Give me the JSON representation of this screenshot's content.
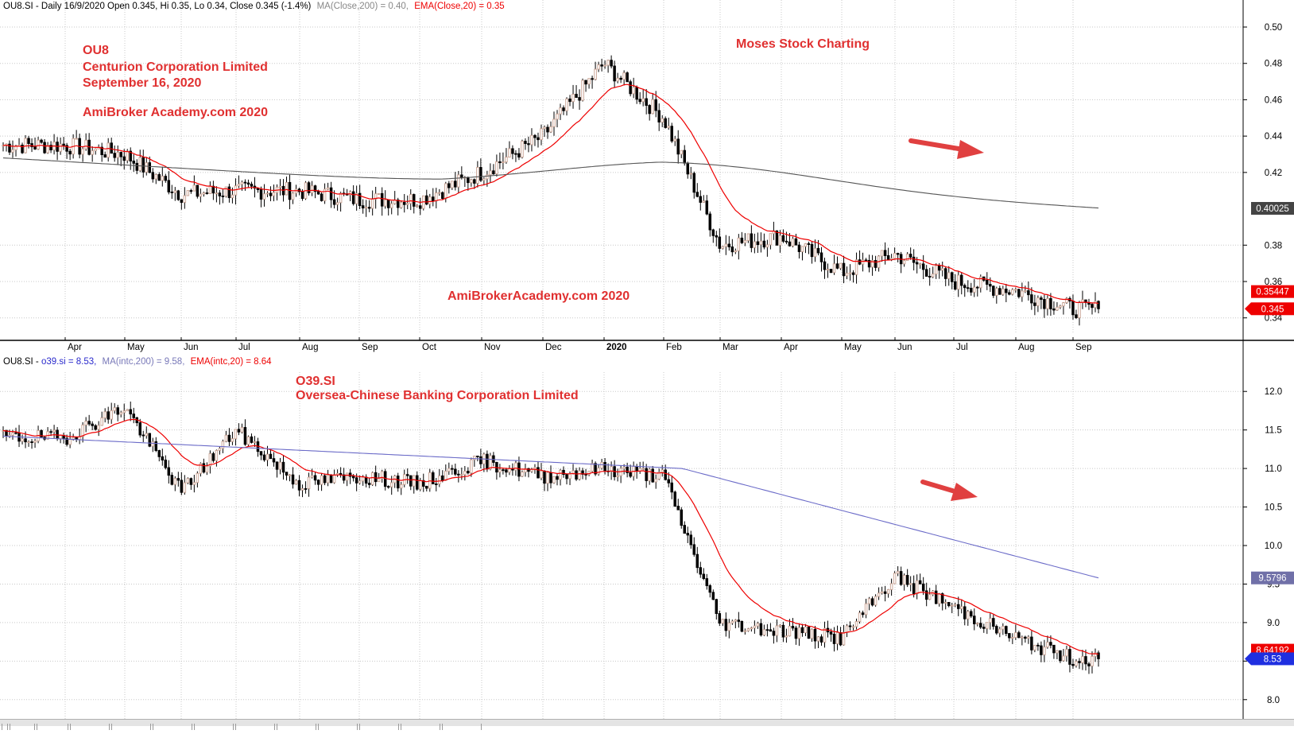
{
  "colors": {
    "background": "#ffffff",
    "grid": "#c8c8c8",
    "up_candle": "#c8a090",
    "down_candle": "#000000",
    "ema": "#ee0000",
    "ma_top": "#555555",
    "ma_bottom": "#6b6bc8",
    "annotation": "#e03030",
    "arrow": "#e04040",
    "price_tag_red": "#ee0000",
    "price_tag_gray": "#444444",
    "price_tag_blue": "#1f2fe0",
    "price_tag_purple": "#7070a8"
  },
  "top_pane": {
    "header": {
      "ticker_line": "OU8.SI - Daily 16/9/2020 Open 0.345, Hi 0.35, Lo 0.34, Close 0.345 (-1.4%)",
      "ma_label": "MA(Close,200) = 0.40,",
      "ema_label": "EMA(Close,20) = 0.35"
    },
    "annotations": {
      "ticker": "OU8",
      "company": "Centurion Corporation Limited",
      "date": "September 16, 2020",
      "site_left": "AmiBroker Academy.com  2020",
      "brand": "Moses Stock Charting",
      "site_center": "AmiBrokerAcademy.com 2020"
    },
    "price_tags": {
      "ma": "0.40025",
      "ema": "0.35447",
      "close": "0.345"
    },
    "x_labels": [
      {
        "label": "Apr",
        "bold": false
      },
      {
        "label": "May",
        "bold": false
      },
      {
        "label": "Jun",
        "bold": false
      },
      {
        "label": "Jul",
        "bold": false
      },
      {
        "label": "Aug",
        "bold": false
      },
      {
        "label": "Sep",
        "bold": false
      },
      {
        "label": "Oct",
        "bold": false
      },
      {
        "label": "Nov",
        "bold": false
      },
      {
        "label": "Dec",
        "bold": false
      },
      {
        "label": "2020",
        "bold": true
      },
      {
        "label": "Feb",
        "bold": false
      },
      {
        "label": "Mar",
        "bold": false
      },
      {
        "label": "Apr",
        "bold": false
      },
      {
        "label": "May",
        "bold": false
      },
      {
        "label": "Jun",
        "bold": false
      },
      {
        "label": "Jul",
        "bold": false
      },
      {
        "label": "Aug",
        "bold": false
      },
      {
        "label": "Sep",
        "bold": false
      }
    ]
  },
  "bottom_pane": {
    "header": {
      "ticker_line": "OU8.SI - ",
      "close_label": "o39.si = 8.53,",
      "ma_label": "MA(intc,200) = 9.58,",
      "ema_label": "EMA(intc,20) = 8.64"
    },
    "annotations": {
      "ticker": "O39.SI",
      "company": "Oversea-Chinese Banking Corporation Limited"
    },
    "price_tags": {
      "ma": "9.5796",
      "ema": "8.64192",
      "close": "8.53"
    }
  },
  "chart_data": [
    {
      "type": "candlestick",
      "symbol": "OU8.SI",
      "title": "Centurion Corporation Limited",
      "period": "Daily",
      "y_ticks": [
        "0.50",
        "0.48",
        "0.46",
        "0.44",
        "0.42",
        "0.38",
        "0.36",
        "0.34"
      ],
      "ylim": [
        0.332,
        0.507
      ],
      "grid": true,
      "x_anchors": [
        {
          "month": "Apr 2019",
          "close": 0.435
        },
        {
          "month": "May 2019",
          "close": 0.43
        },
        {
          "month": "Jun 2019",
          "close": 0.408
        },
        {
          "month": "Jul 2019",
          "close": 0.41
        },
        {
          "month": "Aug 2019",
          "close": 0.41
        },
        {
          "month": "Sep 2019",
          "close": 0.405
        },
        {
          "month": "Oct 2019",
          "close": 0.405
        },
        {
          "month": "Nov 2019",
          "close": 0.42
        },
        {
          "month": "Dec 2019",
          "close": 0.44
        },
        {
          "month": "Jan 2020",
          "close": 0.48
        },
        {
          "month": "Feb 2020",
          "close": 0.45
        },
        {
          "month": "Mar 2020",
          "close": 0.38
        },
        {
          "month": "Apr 2020",
          "close": 0.385
        },
        {
          "month": "May 2020",
          "close": 0.365
        },
        {
          "month": "Jun 2020",
          "close": 0.375
        },
        {
          "month": "Jul 2020",
          "close": 0.36
        },
        {
          "month": "Aug 2020",
          "close": 0.355
        },
        {
          "month": "Sep 2020",
          "close": 0.345
        }
      ],
      "series": [
        {
          "name": "MA(Close,200)",
          "last": 0.40025
        },
        {
          "name": "EMA(Close,20)",
          "last": 0.35447
        }
      ],
      "last_ohlc": {
        "open": 0.345,
        "high": 0.35,
        "low": 0.34,
        "close": 0.345,
        "change_pct": -1.4
      }
    },
    {
      "type": "candlestick",
      "symbol": "o39.si",
      "title": "Oversea-Chinese Banking Corporation Limited",
      "period": "Daily",
      "y_ticks": [
        "12.0",
        "11.5",
        "11.0",
        "10.5",
        "10.0",
        "9.5",
        "9.0",
        "8.5",
        "8.0"
      ],
      "ylim": [
        7.75,
        12.25
      ],
      "grid": true,
      "x_anchors": [
        {
          "month": "Apr 2019",
          "close": 11.4
        },
        {
          "month": "May 2019",
          "close": 11.8
        },
        {
          "month": "Jun 2019",
          "close": 10.7
        },
        {
          "month": "Jul 2019",
          "close": 11.5
        },
        {
          "month": "Aug 2019",
          "close": 10.8
        },
        {
          "month": "Sep 2019",
          "close": 10.9
        },
        {
          "month": "Oct 2019",
          "close": 10.8
        },
        {
          "month": "Nov 2019",
          "close": 11.1
        },
        {
          "month": "Dec 2019",
          "close": 10.9
        },
        {
          "month": "Jan 2020",
          "close": 11.0
        },
        {
          "month": "Feb 2020",
          "close": 10.9
        },
        {
          "month": "Mar 2020",
          "close": 9.0
        },
        {
          "month": "Apr 2020",
          "close": 8.9
        },
        {
          "month": "May 2020",
          "close": 8.8
        },
        {
          "month": "Jun 2020",
          "close": 9.6
        },
        {
          "month": "Jul 2020",
          "close": 9.2
        },
        {
          "month": "Aug 2020",
          "close": 8.8
        },
        {
          "month": "Sep 2020",
          "close": 8.53
        }
      ],
      "series": [
        {
          "name": "MA(intc,200)",
          "last": 9.5796
        },
        {
          "name": "EMA(intc,20)",
          "last": 8.64192
        }
      ],
      "last_close": 8.53
    }
  ]
}
